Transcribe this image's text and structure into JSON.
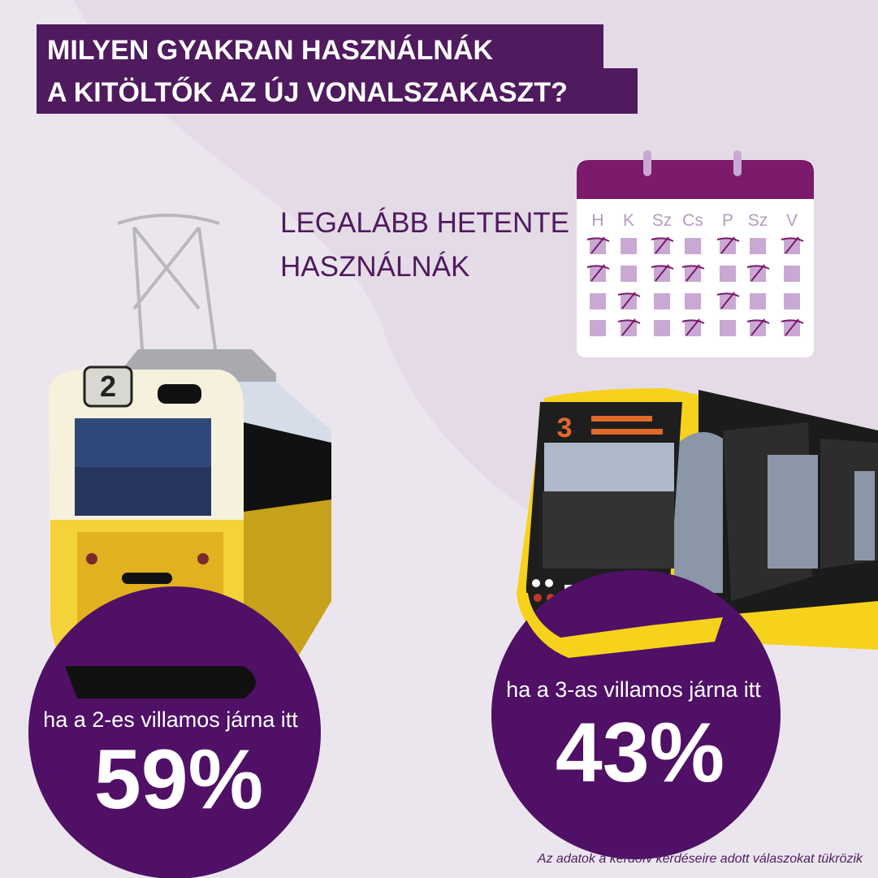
{
  "header": {
    "title_lines": [
      "MILYEN GYAKRAN HASZNÁLNÁK",
      "A KITÖLTŐK AZ ÚJ VONALSZAKASZT?"
    ]
  },
  "subtitle_lines": [
    "LEGALÁBB HETENTE",
    "HASZNÁLNÁK"
  ],
  "calendar": {
    "days": [
      "H",
      "K",
      "Sz",
      "Cs",
      "P",
      "Sz",
      "V"
    ]
  },
  "trams": [
    {
      "number": "2"
    },
    {
      "number": "3"
    }
  ],
  "stats": [
    {
      "label": "ha a 2-es villamos járna itt",
      "value": "59%"
    },
    {
      "label": "ha a 3-as villamos járna itt",
      "value": "43%"
    }
  ],
  "footnote": "Az adatok a kérdőív kérdéseire adott válaszokat tükrözik"
}
